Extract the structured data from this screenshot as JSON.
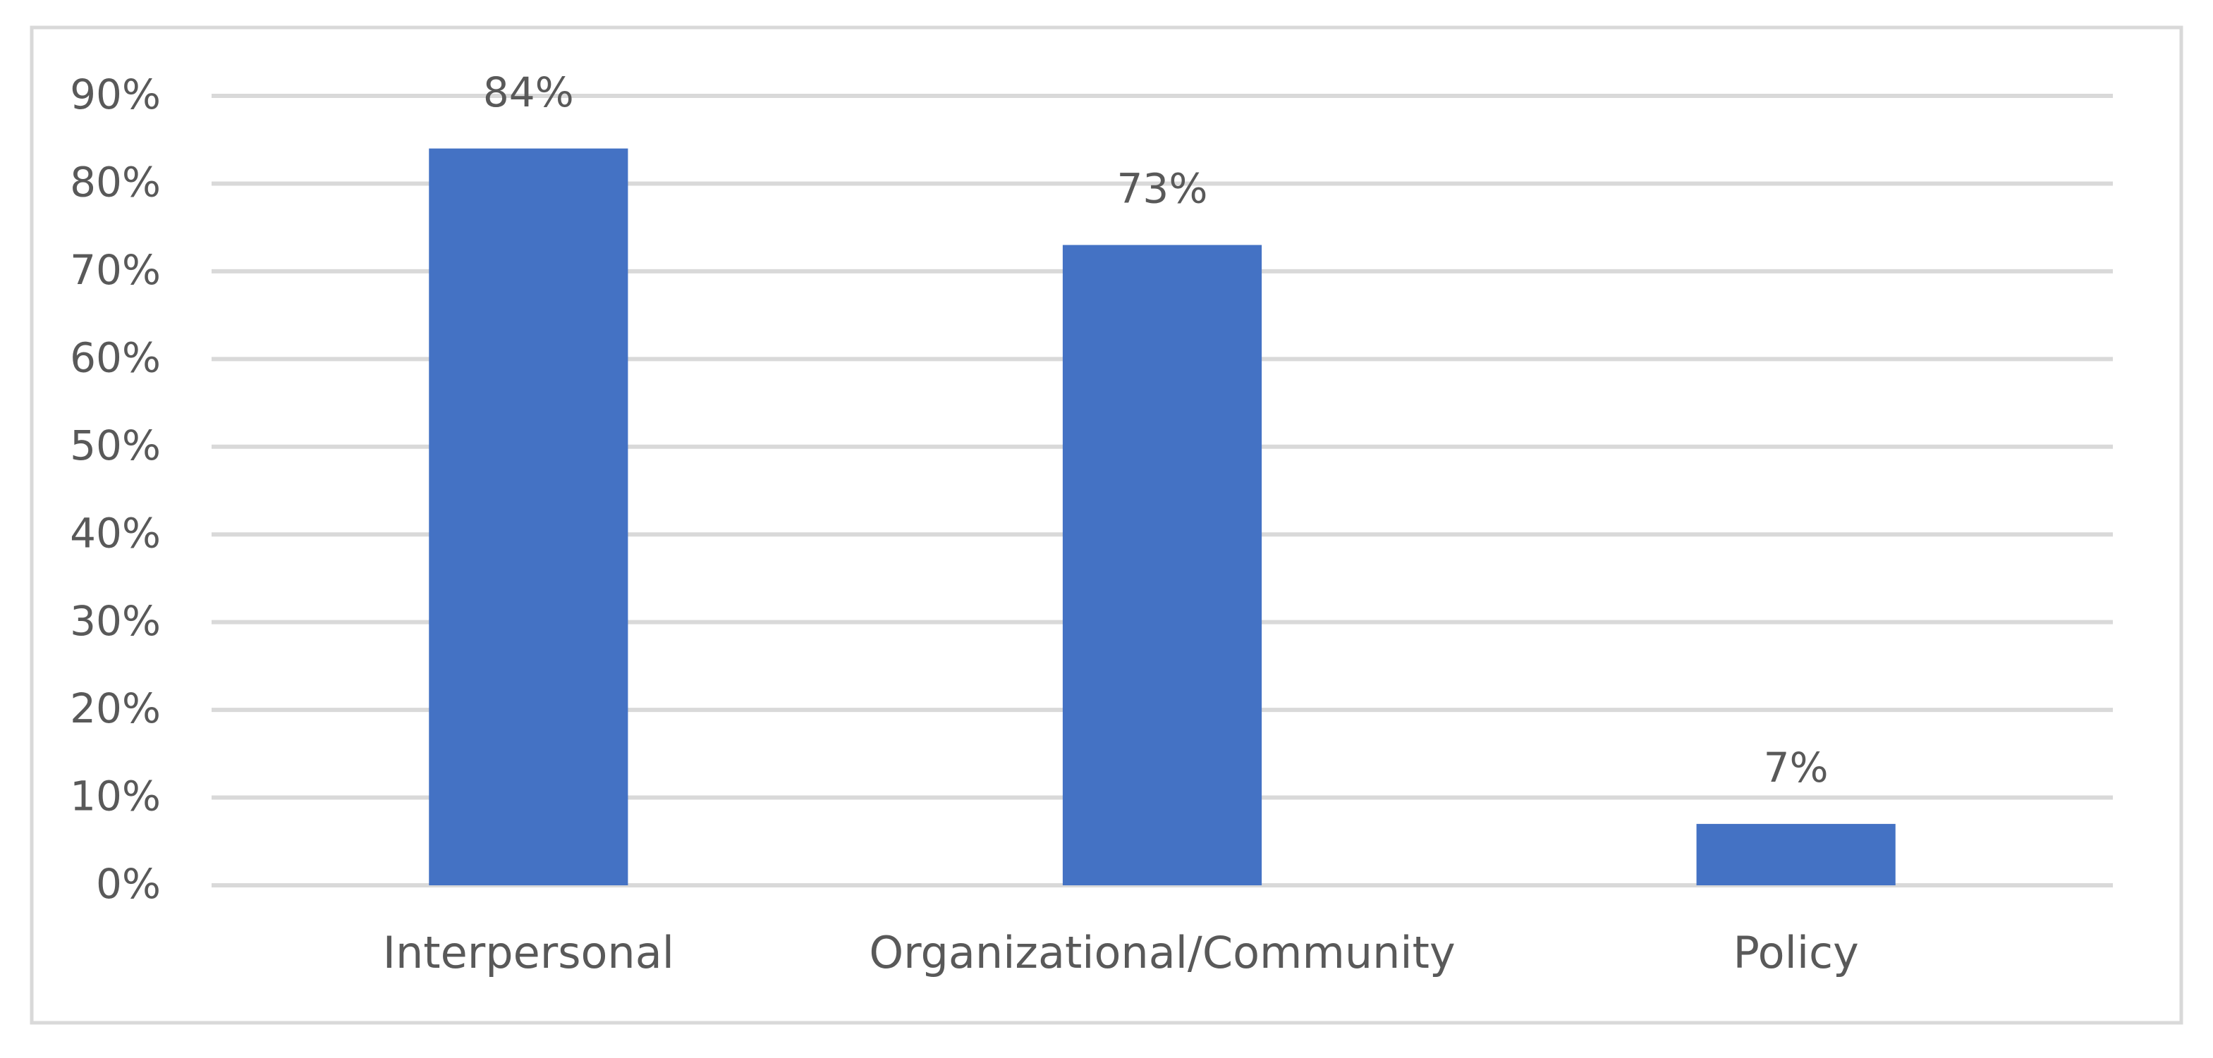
{
  "chart_data": {
    "type": "bar",
    "categories": [
      "Interpersonal",
      "Organizational/Community",
      "Policy"
    ],
    "values": [
      84,
      73,
      7
    ],
    "value_labels": [
      "84%",
      "73%",
      "7%"
    ],
    "color": "#4472c4",
    "ylim": [
      0,
      90
    ],
    "yticks": [
      {
        "value": 0,
        "label": "0%"
      },
      {
        "value": 10,
        "label": "10%"
      },
      {
        "value": 20,
        "label": "20%"
      },
      {
        "value": 30,
        "label": "30%"
      },
      {
        "value": 40,
        "label": "40%"
      },
      {
        "value": 50,
        "label": "50%"
      },
      {
        "value": 60,
        "label": "60%"
      },
      {
        "value": 70,
        "label": "70%"
      },
      {
        "value": 80,
        "label": "80%"
      },
      {
        "value": 90,
        "label": "90%"
      }
    ],
    "grid": true
  }
}
